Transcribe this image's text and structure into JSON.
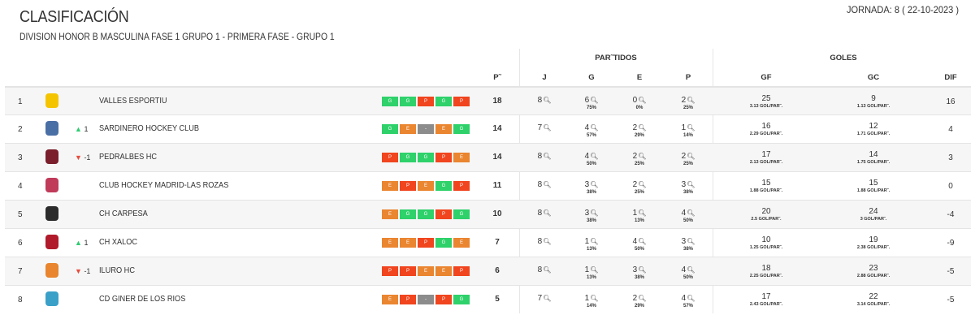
{
  "header": {
    "title": "CLASIFICACIÓN",
    "subtitle": "DIVISION HONOR B MASCULINA FASE 1 GRUPO 1 - PRIMERA FASE - GRUPO 1",
    "jornada": "JORNADA: 8 ( 22-10-2023 )"
  },
  "columns": {
    "partidos": "PAR˜TIDOS",
    "goles": "GOLES",
    "pt": "P˜",
    "j": "J",
    "g": "G",
    "e": "E",
    "p": "P",
    "gf": "GF",
    "gc": "GC",
    "dif": "DIF"
  },
  "form_colors": {
    "G": "#2ed16a",
    "P": "#f0451e",
    "E": "#ea8530",
    "-": "#8c8c8c"
  },
  "trend_colors": {
    "up": "#2ecc71",
    "down": "#e74c3c"
  },
  "search_icon": "magnifier-icon",
  "rows": [
    {
      "pos": "1",
      "logo_color": "#f5c400",
      "trend": "",
      "trend_dir": "",
      "name": "VALLES ESPORTIU",
      "form": [
        "G",
        "G",
        "P",
        "G",
        "P"
      ],
      "pt": "18",
      "j": "8",
      "g": "6",
      "g_pct": "75%",
      "e": "0",
      "e_pct": "0%",
      "p": "2",
      "p_pct": "25%",
      "gf": "25",
      "gf_per": "3.13 GOL/PAR˜.",
      "gc": "9",
      "gc_per": "1.13 GOL/PAR˜.",
      "dif": "16"
    },
    {
      "pos": "2",
      "logo_color": "#4a6fa5",
      "trend": "1",
      "trend_dir": "up",
      "name": "SARDINERO HOCKEY CLUB",
      "form": [
        "G",
        "E",
        "-",
        "E",
        "G"
      ],
      "pt": "14",
      "j": "7",
      "g": "4",
      "g_pct": "57%",
      "e": "2",
      "e_pct": "29%",
      "p": "1",
      "p_pct": "14%",
      "gf": "16",
      "gf_per": "2.29 GOL/PAR˜.",
      "gc": "12",
      "gc_per": "1.71 GOL/PAR˜.",
      "dif": "4"
    },
    {
      "pos": "3",
      "logo_color": "#7a1f2b",
      "trend": "-1",
      "trend_dir": "down",
      "name": "PEDRALBES HC",
      "form": [
        "P",
        "G",
        "G",
        "P",
        "E"
      ],
      "pt": "14",
      "j": "8",
      "g": "4",
      "g_pct": "50%",
      "e": "2",
      "e_pct": "25%",
      "p": "2",
      "p_pct": "25%",
      "gf": "17",
      "gf_per": "2.13 GOL/PAR˜.",
      "gc": "14",
      "gc_per": "1.75 GOL/PAR˜.",
      "dif": "3"
    },
    {
      "pos": "4",
      "logo_color": "#c03a5a",
      "trend": "",
      "trend_dir": "",
      "name": "CLUB HOCKEY MADRID-LAS ROZAS",
      "form": [
        "E",
        "P",
        "E",
        "G",
        "P"
      ],
      "pt": "11",
      "j": "8",
      "g": "3",
      "g_pct": "38%",
      "e": "2",
      "e_pct": "25%",
      "p": "3",
      "p_pct": "38%",
      "gf": "15",
      "gf_per": "1.88 GOL/PAR˜.",
      "gc": "15",
      "gc_per": "1.88 GOL/PAR˜.",
      "dif": "0"
    },
    {
      "pos": "5",
      "logo_color": "#2b2b2b",
      "trend": "",
      "trend_dir": "",
      "name": "CH CARPESA",
      "form": [
        "E",
        "G",
        "G",
        "P",
        "G"
      ],
      "pt": "10",
      "j": "8",
      "g": "3",
      "g_pct": "38%",
      "e": "1",
      "e_pct": "13%",
      "p": "4",
      "p_pct": "50%",
      "gf": "20",
      "gf_per": "2.5 GOL/PAR˜.",
      "gc": "24",
      "gc_per": "3 GOL/PAR˜.",
      "dif": "-4"
    },
    {
      "pos": "6",
      "logo_color": "#b01a2a",
      "trend": "1",
      "trend_dir": "up",
      "name": "CH XALOC",
      "form": [
        "E",
        "E",
        "P",
        "G",
        "E"
      ],
      "pt": "7",
      "j": "8",
      "g": "1",
      "g_pct": "13%",
      "e": "4",
      "e_pct": "50%",
      "p": "3",
      "p_pct": "38%",
      "gf": "10",
      "gf_per": "1.25 GOL/PAR˜.",
      "gc": "19",
      "gc_per": "2.38 GOL/PAR˜.",
      "dif": "-9"
    },
    {
      "pos": "7",
      "logo_color": "#e8852e",
      "trend": "-1",
      "trend_dir": "down",
      "name": "ILURO HC",
      "form": [
        "P",
        "P",
        "E",
        "E",
        "P"
      ],
      "pt": "6",
      "j": "8",
      "g": "1",
      "g_pct": "13%",
      "e": "3",
      "e_pct": "38%",
      "p": "4",
      "p_pct": "50%",
      "gf": "18",
      "gf_per": "2.25 GOL/PAR˜.",
      "gc": "23",
      "gc_per": "2.88 GOL/PAR˜.",
      "dif": "-5"
    },
    {
      "pos": "8",
      "logo_color": "#3aa0c8",
      "trend": "",
      "trend_dir": "",
      "name": "CD GINER DE LOS RIOS",
      "form": [
        "E",
        "P",
        "-",
        "P",
        "G"
      ],
      "pt": "5",
      "j": "7",
      "g": "1",
      "g_pct": "14%",
      "e": "2",
      "e_pct": "29%",
      "p": "4",
      "p_pct": "57%",
      "gf": "17",
      "gf_per": "2.43 GOL/PAR˜.",
      "gc": "22",
      "gc_per": "3.14 GOL/PAR˜.",
      "dif": "-5"
    }
  ]
}
